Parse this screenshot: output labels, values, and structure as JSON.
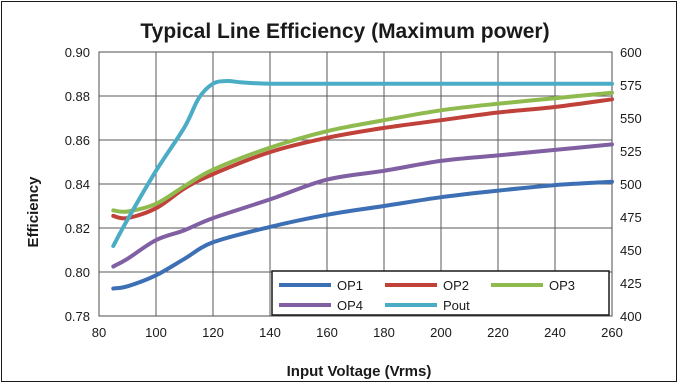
{
  "chart_data": {
    "type": "line",
    "title": "Typical Line Efficiency (Maximum power)",
    "xlabel": "Input Voltage (Vrms)",
    "ylabel": "Efficiency",
    "y2label": "",
    "xlim": [
      80,
      260
    ],
    "ylim": [
      0.78,
      0.9
    ],
    "y2lim": [
      400,
      600
    ],
    "x_ticks": [
      80,
      100,
      120,
      140,
      160,
      180,
      200,
      220,
      240,
      260
    ],
    "y_ticks": [
      "0.78",
      "0.80",
      "0.82",
      "0.84",
      "0.86",
      "0.88",
      "0.90"
    ],
    "y2_ticks": [
      "400",
      "425",
      "450",
      "475",
      "500",
      "525",
      "550",
      "575",
      "600"
    ],
    "grid": "vertical and horizontal",
    "legend_position": "bottom-right",
    "series": [
      {
        "name": "OP1",
        "axis": "left",
        "color": "#3d6fb5",
        "x": [
          85,
          90,
          100,
          110,
          120,
          140,
          160,
          180,
          200,
          220,
          240,
          260
        ],
        "y": [
          0.7925,
          0.7935,
          0.7985,
          0.806,
          0.8135,
          0.8205,
          0.826,
          0.83,
          0.834,
          0.837,
          0.8395,
          0.841
        ]
      },
      {
        "name": "OP2",
        "axis": "left",
        "color": "#c0403a",
        "x": [
          85,
          90,
          100,
          110,
          120,
          140,
          160,
          180,
          200,
          220,
          240,
          260
        ],
        "y": [
          0.8255,
          0.8245,
          0.829,
          0.838,
          0.8445,
          0.8545,
          0.861,
          0.8655,
          0.869,
          0.8725,
          0.875,
          0.8785
        ]
      },
      {
        "name": "OP3",
        "axis": "left",
        "color": "#8fba4e",
        "x": [
          85,
          90,
          100,
          110,
          120,
          140,
          160,
          180,
          200,
          220,
          240,
          260
        ],
        "y": [
          0.828,
          0.8275,
          0.831,
          0.839,
          0.8465,
          0.8565,
          0.864,
          0.869,
          0.8735,
          0.8765,
          0.879,
          0.8815
        ]
      },
      {
        "name": "OP4",
        "axis": "left",
        "color": "#8060a3",
        "x": [
          85,
          90,
          100,
          110,
          120,
          140,
          160,
          180,
          200,
          220,
          240,
          260
        ],
        "y": [
          0.8025,
          0.806,
          0.8145,
          0.819,
          0.8245,
          0.833,
          0.842,
          0.846,
          0.8505,
          0.853,
          0.8555,
          0.858
        ]
      },
      {
        "name": "Pout",
        "axis": "right",
        "color": "#4bacc6",
        "x": [
          85,
          90,
          100,
          110,
          115,
          120,
          125,
          130,
          140,
          160,
          180,
          200,
          220,
          240,
          260
        ],
        "y": [
          453,
          473,
          510,
          543,
          565,
          576,
          578,
          577,
          576,
          576,
          576,
          576,
          576,
          576,
          576
        ]
      }
    ]
  }
}
